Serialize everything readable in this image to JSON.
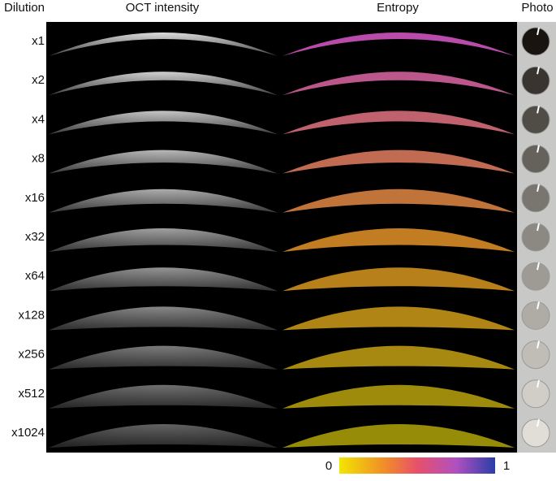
{
  "headers": [
    "Dilution",
    "OCT intensity",
    "Entropy",
    "Photo"
  ],
  "rows": [
    "x1",
    "x2",
    "x4",
    "x8",
    "x16",
    "x32",
    "x64",
    "x128",
    "x256",
    "x512",
    "x1024"
  ],
  "colorbar": {
    "lim": [
      0,
      1
    ],
    "ticks": [
      0,
      1
    ]
  }
}
